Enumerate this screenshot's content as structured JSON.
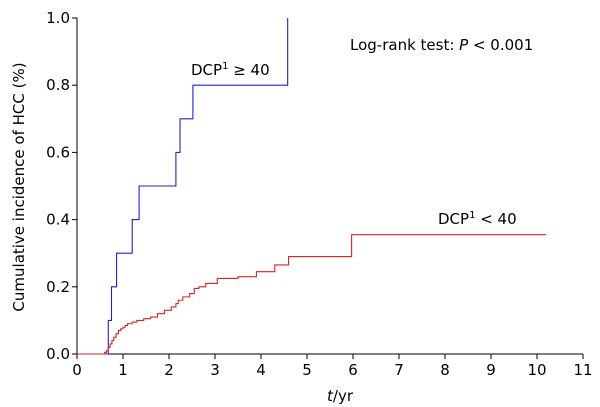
{
  "chart_data": {
    "type": "line",
    "step": true,
    "xlabel_italic": "t",
    "xlabel_rest": "/yr",
    "ylabel": "Cumulative incidence of HCC (%)",
    "xlim": [
      0,
      11
    ],
    "ylim": [
      0,
      1.0
    ],
    "xticks": [
      0,
      1,
      2,
      3,
      4,
      5,
      6,
      7,
      8,
      9,
      10,
      11
    ],
    "yticks": [
      "0.0",
      "0.2",
      "0.4",
      "0.6",
      "0.8",
      "1.0"
    ],
    "annotation_prefix": "Log-rank test: ",
    "annotation_p": "P",
    "annotation_rest": " < 0.001",
    "series": [
      {
        "name_base": "DCP",
        "name_sup": "1",
        "name_rest": " ≥ 40",
        "color": "#2222cc",
        "x": [
          0,
          0.67,
          0.68,
          0.75,
          0.86,
          1.2,
          1.35,
          2.15,
          2.24,
          2.52,
          4.58,
          4.58
        ],
        "y": [
          0,
          0,
          0.1,
          0.2,
          0.3,
          0.4,
          0.5,
          0.6,
          0.7,
          0.8,
          0.8,
          1.0
        ]
      },
      {
        "name_base": "DCP",
        "name_sup": "1",
        "name_rest": " < 40",
        "color": "#dd2222",
        "x": [
          0,
          0.6,
          0.64,
          0.68,
          0.72,
          0.76,
          0.8,
          0.85,
          0.9,
          0.95,
          1.0,
          1.05,
          1.1,
          1.2,
          1.3,
          1.45,
          1.6,
          1.75,
          1.9,
          2.05,
          2.15,
          2.2,
          2.3,
          2.45,
          2.55,
          2.65,
          2.8,
          3.05,
          3.5,
          3.9,
          4.3,
          4.6,
          5.97,
          10.2
        ],
        "y": [
          0,
          0.005,
          0.01,
          0.02,
          0.03,
          0.04,
          0.05,
          0.06,
          0.07,
          0.075,
          0.08,
          0.085,
          0.09,
          0.095,
          0.1,
          0.105,
          0.11,
          0.12,
          0.13,
          0.14,
          0.15,
          0.16,
          0.17,
          0.18,
          0.195,
          0.2,
          0.21,
          0.225,
          0.23,
          0.245,
          0.265,
          0.29,
          0.355,
          0.355
        ]
      }
    ]
  }
}
